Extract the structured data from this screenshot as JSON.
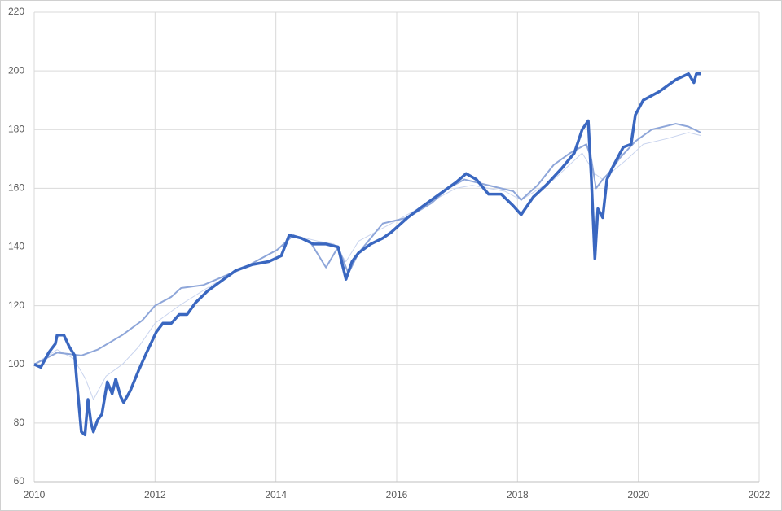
{
  "chart_data": {
    "type": "line",
    "xlim": [
      2010,
      2022
    ],
    "xticks": [
      2010,
      2012,
      2014,
      2016,
      2018,
      2020,
      2022
    ],
    "ylim": [
      60,
      220
    ],
    "yticks": [
      60,
      80,
      100,
      120,
      140,
      160,
      180,
      200,
      220
    ],
    "grid": true,
    "series": [
      {
        "color": "#c9d4ee",
        "width": 1,
        "x": [
          2010,
          2010.38,
          2010.65,
          2010.85,
          2010.98,
          2011.19,
          2011.46,
          2011.73,
          2012.0,
          2012.4,
          2012.94,
          2013.48,
          2014.09,
          2014.29,
          2014.69,
          2014.96,
          2015.16,
          2015.37,
          2015.91,
          2016.44,
          2016.98,
          2017.25,
          2017.79,
          2018.06,
          2018.6,
          2019.07,
          2019.28,
          2019.41,
          2019.82,
          2020.08,
          2020.49,
          2020.83,
          2021.03
        ],
        "values": [
          100,
          105,
          102,
          95,
          88,
          96,
          100,
          106,
          114,
          120,
          127,
          133,
          140,
          144,
          142,
          141,
          135,
          142,
          148,
          154,
          160,
          161,
          159,
          156,
          163,
          172,
          165,
          163,
          170,
          175,
          177,
          179,
          178
        ]
      },
      {
        "color": "#8ea6d9",
        "width": 2,
        "x": [
          2010,
          2010.38,
          2010.78,
          2011.05,
          2011.46,
          2011.79,
          2012.0,
          2012.27,
          2012.43,
          2012.8,
          2013.48,
          2014.02,
          2014.29,
          2014.56,
          2014.83,
          2015.03,
          2015.2,
          2015.37,
          2015.77,
          2016.18,
          2016.58,
          2016.85,
          2017.12,
          2017.52,
          2017.93,
          2018.06,
          2018.33,
          2018.6,
          2018.87,
          2019.14,
          2019.22,
          2019.3,
          2019.41,
          2019.55,
          2019.68,
          2019.95,
          2020.22,
          2020.62,
          2020.83,
          2021.03
        ],
        "values": [
          100,
          104,
          103,
          105,
          110,
          115,
          120,
          123,
          126,
          127,
          133,
          139,
          144,
          142,
          133,
          140,
          131,
          138,
          148,
          150,
          155,
          160,
          163,
          161,
          159,
          156,
          161,
          168,
          172,
          175,
          170,
          160,
          163,
          166,
          170,
          176,
          180,
          182,
          181,
          179
        ]
      },
      {
        "color": "#3a67c0",
        "width": 3.5,
        "x": [
          2010,
          2010.11,
          2010.24,
          2010.35,
          2010.38,
          2010.49,
          2010.58,
          2010.67,
          2010.71,
          2010.78,
          2010.84,
          2010.89,
          2010.94,
          2010.98,
          2011.05,
          2011.12,
          2011.21,
          2011.29,
          2011.35,
          2011.43,
          2011.48,
          2011.59,
          2011.73,
          2011.86,
          2012.02,
          2012.13,
          2012.27,
          2012.4,
          2012.53,
          2012.67,
          2012.87,
          2013.07,
          2013.34,
          2013.61,
          2013.88,
          2014.09,
          2014.22,
          2014.42,
          2014.62,
          2014.83,
          2015.03,
          2015.16,
          2015.26,
          2015.37,
          2015.57,
          2015.77,
          2015.91,
          2016.18,
          2016.44,
          2016.71,
          2016.98,
          2017.15,
          2017.32,
          2017.52,
          2017.73,
          2017.93,
          2018.06,
          2018.26,
          2018.47,
          2018.74,
          2018.94,
          2019.07,
          2019.17,
          2019.22,
          2019.28,
          2019.33,
          2019.41,
          2019.48,
          2019.57,
          2019.75,
          2019.88,
          2019.95,
          2020.08,
          2020.35,
          2020.62,
          2020.83,
          2020.92,
          2020.96,
          2021.03
        ],
        "values": [
          100,
          99,
          104,
          107,
          110,
          110,
          106,
          103,
          93,
          77,
          76,
          88,
          80,
          77,
          81,
          83,
          94,
          90,
          95,
          89,
          87,
          91,
          98,
          104,
          111,
          114,
          114,
          117,
          117,
          121,
          125,
          128,
          132,
          134,
          135,
          137,
          144,
          143,
          141,
          141,
          140,
          129,
          135,
          138,
          141,
          143,
          145,
          150,
          154,
          158,
          162,
          165,
          163,
          158,
          158,
          154,
          151,
          157,
          161,
          167,
          172,
          180,
          183,
          164,
          136,
          153,
          150,
          163,
          167,
          174,
          175,
          185,
          190,
          193,
          197,
          199,
          196,
          199,
          199
        ]
      }
    ]
  }
}
